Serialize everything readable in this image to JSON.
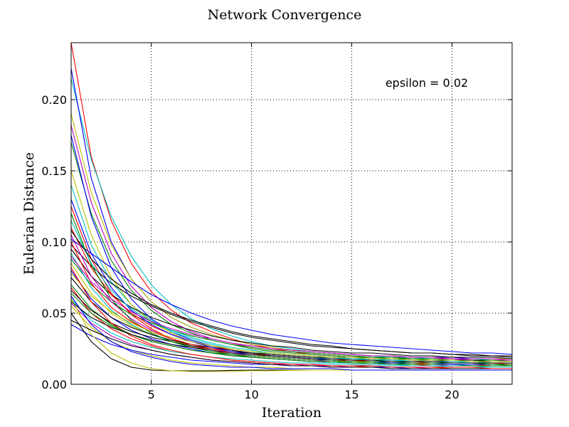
{
  "chart_data": {
    "type": "line",
    "title": "Network Convergence",
    "xlabel": "Iteration",
    "ylabel": "Eulerian Distance",
    "annotation": "epsilon = 0.02",
    "xlim": [
      1,
      23
    ],
    "ylim": [
      0,
      0.24
    ],
    "xticks": [
      5,
      10,
      15,
      20
    ],
    "xtick_labels": [
      "5",
      "10",
      "15",
      "20"
    ],
    "yticks": [
      0.0,
      0.05,
      0.1,
      0.15,
      0.2
    ],
    "ytick_labels": [
      "0.00",
      "0.05",
      "0.10",
      "0.15",
      "0.20"
    ],
    "grid": true,
    "x": [
      1,
      2,
      3,
      4,
      5,
      6,
      7,
      8,
      9,
      10,
      11,
      12,
      13,
      14,
      15,
      16,
      17,
      18,
      19,
      20,
      21,
      22,
      23
    ],
    "series": [
      {
        "color": "#ff0000",
        "values": [
          0.24,
          0.16,
          0.115,
          0.085,
          0.065,
          0.052,
          0.043,
          0.037,
          0.032,
          0.028,
          0.025,
          0.023,
          0.021,
          0.02,
          0.019,
          0.018,
          0.017,
          0.017,
          0.016,
          0.016,
          0.016,
          0.015,
          0.015
        ]
      },
      {
        "color": "#00bfbf",
        "values": [
          0.215,
          0.158,
          0.118,
          0.09,
          0.07,
          0.056,
          0.046,
          0.039,
          0.034,
          0.03,
          0.027,
          0.025,
          0.023,
          0.022,
          0.021,
          0.02,
          0.019,
          0.019,
          0.018,
          0.018,
          0.018,
          0.017,
          0.017
        ]
      },
      {
        "color": "#0000ff",
        "values": [
          0.222,
          0.145,
          0.1,
          0.074,
          0.058,
          0.047,
          0.04,
          0.035,
          0.031,
          0.028,
          0.026,
          0.024,
          0.023,
          0.022,
          0.021,
          0.02,
          0.02,
          0.019,
          0.019,
          0.019,
          0.018,
          0.018,
          0.018
        ]
      },
      {
        "color": "#bfbf00",
        "values": [
          0.19,
          0.135,
          0.098,
          0.074,
          0.058,
          0.047,
          0.04,
          0.035,
          0.031,
          0.028,
          0.026,
          0.024,
          0.023,
          0.022,
          0.021,
          0.02,
          0.02,
          0.019,
          0.019,
          0.018,
          0.018,
          0.018,
          0.018
        ]
      },
      {
        "color": "#bf00bf",
        "values": [
          0.182,
          0.128,
          0.092,
          0.069,
          0.054,
          0.044,
          0.037,
          0.032,
          0.029,
          0.026,
          0.024,
          0.023,
          0.022,
          0.021,
          0.02,
          0.019,
          0.019,
          0.018,
          0.018,
          0.018,
          0.017,
          0.017,
          0.017
        ]
      },
      {
        "color": "#008000",
        "values": [
          0.17,
          0.12,
          0.087,
          0.066,
          0.052,
          0.042,
          0.036,
          0.031,
          0.028,
          0.025,
          0.023,
          0.022,
          0.021,
          0.02,
          0.019,
          0.019,
          0.018,
          0.018,
          0.017,
          0.017,
          0.017,
          0.016,
          0.016
        ]
      },
      {
        "color": "#0000ff",
        "values": [
          0.175,
          0.118,
          0.082,
          0.06,
          0.046,
          0.037,
          0.031,
          0.027,
          0.024,
          0.022,
          0.02,
          0.019,
          0.018,
          0.017,
          0.017,
          0.016,
          0.016,
          0.015,
          0.015,
          0.015,
          0.015,
          0.014,
          0.014
        ]
      },
      {
        "color": "#00bfbf",
        "values": [
          0.14,
          0.098,
          0.072,
          0.056,
          0.045,
          0.037,
          0.032,
          0.028,
          0.025,
          0.023,
          0.021,
          0.02,
          0.019,
          0.018,
          0.018,
          0.017,
          0.017,
          0.016,
          0.016,
          0.016,
          0.015,
          0.015,
          0.015
        ]
      },
      {
        "color": "#ff0000",
        "values": [
          0.125,
          0.088,
          0.064,
          0.049,
          0.039,
          0.032,
          0.027,
          0.024,
          0.021,
          0.019,
          0.018,
          0.017,
          0.016,
          0.015,
          0.015,
          0.014,
          0.014,
          0.014,
          0.013,
          0.013,
          0.013,
          0.013,
          0.013
        ]
      },
      {
        "color": "#bfbf00",
        "values": [
          0.15,
          0.105,
          0.075,
          0.056,
          0.044,
          0.036,
          0.03,
          0.026,
          0.023,
          0.021,
          0.019,
          0.018,
          0.017,
          0.016,
          0.016,
          0.015,
          0.015,
          0.014,
          0.014,
          0.014,
          0.014,
          0.013,
          0.013
        ]
      },
      {
        "color": "#000000",
        "values": [
          0.098,
          0.083,
          0.071,
          0.062,
          0.055,
          0.049,
          0.044,
          0.04,
          0.036,
          0.033,
          0.031,
          0.029,
          0.027,
          0.026,
          0.025,
          0.024,
          0.023,
          0.022,
          0.022,
          0.021,
          0.021,
          0.02,
          0.02
        ]
      },
      {
        "color": "#0000ff",
        "values": [
          0.102,
          0.092,
          0.082,
          0.072,
          0.063,
          0.056,
          0.05,
          0.045,
          0.041,
          0.038,
          0.035,
          0.033,
          0.031,
          0.029,
          0.028,
          0.027,
          0.026,
          0.025,
          0.024,
          0.023,
          0.022,
          0.022,
          0.021
        ]
      },
      {
        "color": "#000000",
        "values": [
          0.095,
          0.076,
          0.063,
          0.054,
          0.047,
          0.042,
          0.038,
          0.034,
          0.031,
          0.029,
          0.027,
          0.026,
          0.024,
          0.023,
          0.022,
          0.022,
          0.021,
          0.02,
          0.02,
          0.019,
          0.019,
          0.019,
          0.018
        ]
      },
      {
        "color": "#008000",
        "values": [
          0.088,
          0.07,
          0.058,
          0.049,
          0.043,
          0.038,
          0.034,
          0.031,
          0.028,
          0.026,
          0.024,
          0.023,
          0.022,
          0.021,
          0.02,
          0.019,
          0.019,
          0.018,
          0.018,
          0.017,
          0.017,
          0.017,
          0.016
        ]
      },
      {
        "color": "#ff0000",
        "values": [
          0.11,
          0.082,
          0.063,
          0.05,
          0.041,
          0.035,
          0.03,
          0.027,
          0.024,
          0.022,
          0.02,
          0.019,
          0.018,
          0.017,
          0.016,
          0.016,
          0.015,
          0.015,
          0.014,
          0.014,
          0.014,
          0.013,
          0.013
        ]
      },
      {
        "color": "#bf00bf",
        "values": [
          0.105,
          0.076,
          0.058,
          0.046,
          0.038,
          0.032,
          0.028,
          0.025,
          0.022,
          0.02,
          0.019,
          0.018,
          0.017,
          0.016,
          0.015,
          0.015,
          0.014,
          0.014,
          0.014,
          0.013,
          0.013,
          0.013,
          0.013
        ]
      },
      {
        "color": "#00bfbf",
        "values": [
          0.092,
          0.068,
          0.052,
          0.042,
          0.035,
          0.03,
          0.026,
          0.023,
          0.021,
          0.019,
          0.018,
          0.017,
          0.016,
          0.015,
          0.015,
          0.014,
          0.014,
          0.013,
          0.013,
          0.013,
          0.013,
          0.012,
          0.012
        ]
      },
      {
        "color": "#bfbf00",
        "values": [
          0.085,
          0.064,
          0.05,
          0.041,
          0.035,
          0.031,
          0.027,
          0.025,
          0.023,
          0.021,
          0.02,
          0.019,
          0.018,
          0.017,
          0.017,
          0.016,
          0.016,
          0.015,
          0.015,
          0.015,
          0.015,
          0.014,
          0.014
        ]
      },
      {
        "color": "#0000ff",
        "values": [
          0.08,
          0.06,
          0.047,
          0.038,
          0.032,
          0.028,
          0.025,
          0.022,
          0.02,
          0.019,
          0.018,
          0.017,
          0.016,
          0.016,
          0.015,
          0.015,
          0.014,
          0.014,
          0.014,
          0.014,
          0.013,
          0.013,
          0.013
        ]
      },
      {
        "color": "#000000",
        "values": [
          0.075,
          0.058,
          0.047,
          0.04,
          0.035,
          0.031,
          0.028,
          0.026,
          0.024,
          0.022,
          0.021,
          0.02,
          0.019,
          0.019,
          0.018,
          0.018,
          0.017,
          0.017,
          0.017,
          0.016,
          0.016,
          0.016,
          0.016
        ]
      },
      {
        "color": "#008000",
        "values": [
          0.07,
          0.053,
          0.042,
          0.035,
          0.03,
          0.027,
          0.024,
          0.022,
          0.02,
          0.019,
          0.018,
          0.017,
          0.016,
          0.016,
          0.015,
          0.015,
          0.015,
          0.014,
          0.014,
          0.014,
          0.014,
          0.014,
          0.013
        ]
      },
      {
        "color": "#ff0000",
        "values": [
          0.068,
          0.05,
          0.039,
          0.032,
          0.027,
          0.023,
          0.021,
          0.019,
          0.017,
          0.016,
          0.015,
          0.014,
          0.014,
          0.013,
          0.013,
          0.012,
          0.012,
          0.012,
          0.012,
          0.011,
          0.011,
          0.011,
          0.011
        ]
      },
      {
        "color": "#000000",
        "values": [
          0.066,
          0.052,
          0.043,
          0.037,
          0.033,
          0.03,
          0.027,
          0.025,
          0.023,
          0.022,
          0.021,
          0.02,
          0.019,
          0.019,
          0.018,
          0.018,
          0.018,
          0.017,
          0.017,
          0.017,
          0.017,
          0.016,
          0.016
        ]
      },
      {
        "color": "#00bfbf",
        "values": [
          0.06,
          0.045,
          0.036,
          0.03,
          0.026,
          0.023,
          0.021,
          0.019,
          0.018,
          0.017,
          0.016,
          0.015,
          0.015,
          0.014,
          0.014,
          0.013,
          0.013,
          0.013,
          0.013,
          0.012,
          0.012,
          0.012,
          0.012
        ]
      },
      {
        "color": "#bf00bf",
        "values": [
          0.057,
          0.043,
          0.034,
          0.028,
          0.024,
          0.021,
          0.019,
          0.017,
          0.016,
          0.015,
          0.014,
          0.014,
          0.013,
          0.013,
          0.012,
          0.012,
          0.012,
          0.012,
          0.011,
          0.011,
          0.011,
          0.011,
          0.011
        ]
      },
      {
        "color": "#bfbf00",
        "values": [
          0.055,
          0.04,
          0.03,
          0.024,
          0.02,
          0.017,
          0.015,
          0.014,
          0.013,
          0.012,
          0.012,
          0.011,
          0.011,
          0.011,
          0.01,
          0.01,
          0.01,
          0.01,
          0.01,
          0.01,
          0.01,
          0.01,
          0.01
        ]
      },
      {
        "color": "#0000ff",
        "values": [
          0.042,
          0.034,
          0.028,
          0.024,
          0.021,
          0.019,
          0.017,
          0.016,
          0.015,
          0.014,
          0.014,
          0.013,
          0.013,
          0.012,
          0.012,
          0.012,
          0.012,
          0.011,
          0.011,
          0.011,
          0.011,
          0.011,
          0.011
        ]
      },
      {
        "color": "#000000",
        "values": [
          0.05,
          0.03,
          0.018,
          0.012,
          0.01,
          0.0095,
          0.0095,
          0.0095,
          0.0098,
          0.01,
          0.01,
          0.01,
          0.01,
          0.01,
          0.01,
          0.01,
          0.01,
          0.01,
          0.01,
          0.01,
          0.01,
          0.01,
          0.01
        ]
      },
      {
        "color": "#bfbf00",
        "values": [
          0.06,
          0.035,
          0.022,
          0.015,
          0.011,
          0.0095,
          0.009,
          0.009,
          0.009,
          0.0095,
          0.0095,
          0.0098,
          0.01,
          0.01,
          0.01,
          0.01,
          0.01,
          0.01,
          0.01,
          0.01,
          0.01,
          0.01,
          0.01
        ]
      },
      {
        "color": "#000000",
        "values": [
          0.045,
          0.038,
          0.032,
          0.027,
          0.024,
          0.021,
          0.019,
          0.017,
          0.016,
          0.015,
          0.014,
          0.013,
          0.013,
          0.012,
          0.012,
          0.012,
          0.011,
          0.011,
          0.011,
          0.011,
          0.011,
          0.011,
          0.011
        ]
      },
      {
        "color": "#008000",
        "values": [
          0.12,
          0.084,
          0.06,
          0.045,
          0.036,
          0.03,
          0.026,
          0.023,
          0.021,
          0.019,
          0.018,
          0.017,
          0.016,
          0.016,
          0.015,
          0.015,
          0.014,
          0.014,
          0.014,
          0.014,
          0.013,
          0.013,
          0.013
        ]
      },
      {
        "color": "#ff0000",
        "values": [
          0.1,
          0.071,
          0.054,
          0.044,
          0.037,
          0.032,
          0.028,
          0.025,
          0.023,
          0.021,
          0.02,
          0.019,
          0.018,
          0.017,
          0.017,
          0.016,
          0.016,
          0.016,
          0.015,
          0.015,
          0.015,
          0.015,
          0.014
        ]
      },
      {
        "color": "#0000ff",
        "values": [
          0.13,
          0.092,
          0.068,
          0.052,
          0.042,
          0.035,
          0.03,
          0.026,
          0.023,
          0.021,
          0.02,
          0.019,
          0.018,
          0.017,
          0.016,
          0.016,
          0.015,
          0.015,
          0.015,
          0.014,
          0.014,
          0.014,
          0.014
        ]
      },
      {
        "color": "#00bfbf",
        "values": [
          0.115,
          0.085,
          0.066,
          0.053,
          0.044,
          0.038,
          0.033,
          0.029,
          0.026,
          0.024,
          0.022,
          0.021,
          0.02,
          0.019,
          0.018,
          0.018,
          0.017,
          0.017,
          0.016,
          0.016,
          0.016,
          0.015,
          0.015
        ]
      },
      {
        "color": "#bf00bf",
        "values": [
          0.09,
          0.072,
          0.06,
          0.051,
          0.044,
          0.039,
          0.035,
          0.032,
          0.029,
          0.027,
          0.025,
          0.024,
          0.023,
          0.022,
          0.021,
          0.02,
          0.02,
          0.019,
          0.019,
          0.018,
          0.018,
          0.018,
          0.017
        ]
      },
      {
        "color": "#000000",
        "values": [
          0.108,
          0.088,
          0.074,
          0.064,
          0.056,
          0.05,
          0.045,
          0.041,
          0.037,
          0.034,
          0.032,
          0.03,
          0.028,
          0.027,
          0.025,
          0.024,
          0.023,
          0.022,
          0.022,
          0.021,
          0.02,
          0.02,
          0.019
        ]
      },
      {
        "color": "#bfbf00",
        "values": [
          0.078,
          0.062,
          0.051,
          0.043,
          0.037,
          0.033,
          0.03,
          0.027,
          0.025,
          0.023,
          0.022,
          0.021,
          0.02,
          0.019,
          0.019,
          0.018,
          0.018,
          0.017,
          0.017,
          0.017,
          0.016,
          0.016,
          0.016
        ]
      },
      {
        "color": "#ff0000",
        "values": [
          0.082,
          0.058,
          0.043,
          0.034,
          0.028,
          0.024,
          0.021,
          0.019,
          0.017,
          0.016,
          0.015,
          0.014,
          0.014,
          0.013,
          0.013,
          0.013,
          0.012,
          0.012,
          0.012,
          0.012,
          0.012,
          0.011,
          0.011
        ]
      },
      {
        "color": "#008000",
        "values": [
          0.064,
          0.05,
          0.041,
          0.035,
          0.03,
          0.027,
          0.024,
          0.022,
          0.021,
          0.02,
          0.019,
          0.018,
          0.017,
          0.017,
          0.016,
          0.016,
          0.016,
          0.015,
          0.015,
          0.015,
          0.015,
          0.014,
          0.014
        ]
      },
      {
        "color": "#0000ff",
        "values": [
          0.062,
          0.042,
          0.03,
          0.023,
          0.019,
          0.016,
          0.014,
          0.013,
          0.012,
          0.012,
          0.011,
          0.011,
          0.011,
          0.011,
          0.01,
          0.01,
          0.01,
          0.01,
          0.01,
          0.01,
          0.01,
          0.01,
          0.01
        ]
      },
      {
        "color": "#000000",
        "values": [
          0.058,
          0.047,
          0.04,
          0.035,
          0.031,
          0.028,
          0.026,
          0.024,
          0.022,
          0.021,
          0.02,
          0.019,
          0.018,
          0.018,
          0.017,
          0.017,
          0.016,
          0.016,
          0.016,
          0.015,
          0.015,
          0.015,
          0.015
        ]
      }
    ]
  }
}
